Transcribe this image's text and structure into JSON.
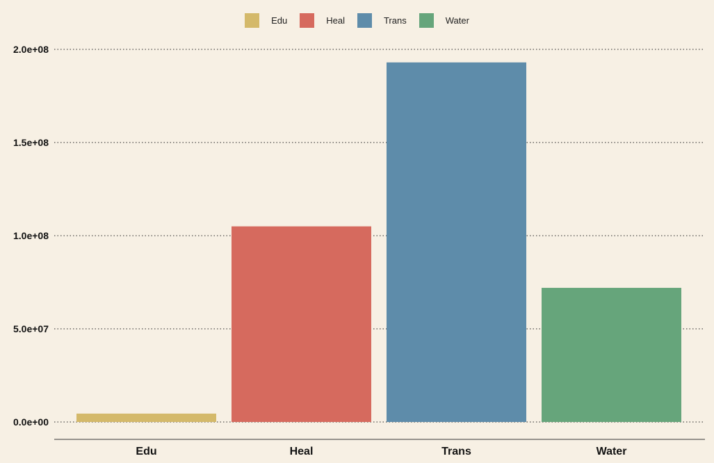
{
  "chart_data": {
    "type": "bar",
    "categories": [
      "Edu",
      "Heal",
      "Trans",
      "Water"
    ],
    "values": [
      4500000,
      105000000,
      193000000,
      72000000
    ],
    "colors": [
      "#d4b96a",
      "#d66a5e",
      "#5e8caa",
      "#66a57b"
    ],
    "legend": [
      "Edu",
      "Heal",
      "Trans",
      "Water"
    ],
    "legend_position": "top",
    "ylim": [
      0,
      200000000
    ],
    "yticks": [
      0,
      50000000,
      100000000,
      150000000,
      200000000
    ],
    "ytick_labels": [
      "0.0e+00",
      "5.0e+07",
      "1.0e+08",
      "1.5e+08",
      "2.0e+08"
    ],
    "grid": "horizontal-dotted",
    "title": "",
    "xlabel": "",
    "ylabel": ""
  },
  "background_color": "#f7f0e4"
}
